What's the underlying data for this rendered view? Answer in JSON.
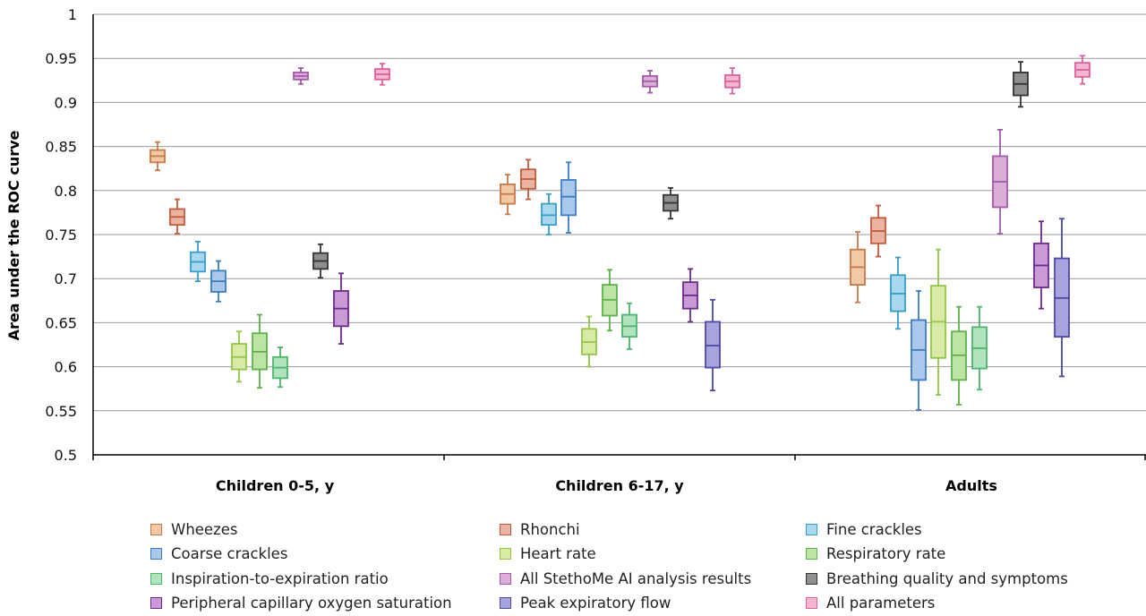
{
  "chart_data": {
    "type": "boxplot",
    "ylabel": "Area under the ROC curve",
    "xlabel": "",
    "ylim": [
      0.5,
      1
    ],
    "yticks": [
      "0.5",
      "0.55",
      "0.6",
      "0.65",
      "0.7",
      "0.75",
      "0.8",
      "0.85",
      "0.9",
      "0.95",
      "1"
    ],
    "grid": true,
    "legend_position": "bottom",
    "categories": [
      "Children 0-5, y",
      "Children 6-17, y",
      "Adults"
    ],
    "series": [
      {
        "name": "Wheezes",
        "fill": "#f2c9a5",
        "stroke": "#c8794a",
        "boxes": [
          {
            "category": "Children 0-5, y",
            "min": 0.823,
            "q1": 0.832,
            "median": 0.839,
            "q3": 0.846,
            "max": 0.855
          },
          {
            "category": "Children 6-17, y",
            "min": 0.773,
            "q1": 0.785,
            "median": 0.796,
            "q3": 0.807,
            "max": 0.818
          },
          {
            "category": "Adults",
            "min": 0.673,
            "q1": 0.693,
            "median": 0.713,
            "q3": 0.733,
            "max": 0.753
          }
        ]
      },
      {
        "name": "Rhonchi",
        "fill": "#eab3a2",
        "stroke": "#c45a3a",
        "boxes": [
          {
            "category": "Children 0-5, y",
            "min": 0.751,
            "q1": 0.761,
            "median": 0.77,
            "q3": 0.779,
            "max": 0.79
          },
          {
            "category": "Children 6-17, y",
            "min": 0.79,
            "q1": 0.802,
            "median": 0.813,
            "q3": 0.824,
            "max": 0.835
          },
          {
            "category": "Adults",
            "min": 0.725,
            "q1": 0.74,
            "median": 0.754,
            "q3": 0.769,
            "max": 0.783
          }
        ]
      },
      {
        "name": "Fine crackles",
        "fill": "#a8d8ed",
        "stroke": "#3a9cc8",
        "boxes": [
          {
            "category": "Children 0-5, y",
            "min": 0.697,
            "q1": 0.708,
            "median": 0.719,
            "q3": 0.73,
            "max": 0.742
          },
          {
            "category": "Children 6-17, y",
            "min": 0.75,
            "q1": 0.761,
            "median": 0.772,
            "q3": 0.785,
            "max": 0.796
          },
          {
            "category": "Adults",
            "min": 0.643,
            "q1": 0.663,
            "median": 0.683,
            "q3": 0.704,
            "max": 0.724
          }
        ]
      },
      {
        "name": "Coarse crackles",
        "fill": "#a9c8ec",
        "stroke": "#3d7cc4",
        "boxes": [
          {
            "category": "Children 0-5, y",
            "min": 0.674,
            "q1": 0.685,
            "median": 0.697,
            "q3": 0.709,
            "max": 0.72
          },
          {
            "category": "Children 6-17, y",
            "min": 0.752,
            "q1": 0.772,
            "median": 0.793,
            "q3": 0.812,
            "max": 0.832
          },
          {
            "category": "Adults",
            "min": 0.551,
            "q1": 0.585,
            "median": 0.619,
            "q3": 0.653,
            "max": 0.686
          }
        ]
      },
      {
        "name": "Heart rate",
        "fill": "#d7eba6",
        "stroke": "#94c548",
        "boxes": [
          {
            "category": "Children 0-5, y",
            "min": 0.583,
            "q1": 0.597,
            "median": 0.611,
            "q3": 0.626,
            "max": 0.64
          },
          {
            "category": "Children 6-17, y",
            "min": 0.6,
            "q1": 0.614,
            "median": 0.628,
            "q3": 0.643,
            "max": 0.657
          },
          {
            "category": "Adults",
            "min": 0.568,
            "q1": 0.61,
            "median": 0.651,
            "q3": 0.692,
            "max": 0.733
          }
        ]
      },
      {
        "name": "Respiratory rate",
        "fill": "#bde3a5",
        "stroke": "#5cb34a",
        "boxes": [
          {
            "category": "Children 0-5, y",
            "min": 0.576,
            "q1": 0.597,
            "median": 0.617,
            "q3": 0.638,
            "max": 0.659
          },
          {
            "category": "Children 6-17, y",
            "min": 0.641,
            "q1": 0.658,
            "median": 0.676,
            "q3": 0.693,
            "max": 0.71
          },
          {
            "category": "Adults",
            "min": 0.557,
            "q1": 0.585,
            "median": 0.613,
            "q3": 0.64,
            "max": 0.668
          }
        ]
      },
      {
        "name": "Inspiration-to-expiration ratio",
        "fill": "#b2e3bf",
        "stroke": "#4cb56c",
        "boxes": [
          {
            "category": "Children 0-5, y",
            "min": 0.577,
            "q1": 0.587,
            "median": 0.599,
            "q3": 0.611,
            "max": 0.622
          },
          {
            "category": "Children 6-17, y",
            "min": 0.62,
            "q1": 0.634,
            "median": 0.646,
            "q3": 0.659,
            "max": 0.672
          },
          {
            "category": "Adults",
            "min": 0.574,
            "q1": 0.598,
            "median": 0.621,
            "q3": 0.645,
            "max": 0.668
          }
        ]
      },
      {
        "name": "All StethoMe AI analysis results",
        "fill": "#dbaed8",
        "stroke": "#a35aa8",
        "boxes": [
          {
            "category": "Children 0-5, y",
            "min": 0.921,
            "q1": 0.926,
            "median": 0.93,
            "q3": 0.934,
            "max": 0.939
          },
          {
            "category": "Children 6-17, y",
            "min": 0.911,
            "q1": 0.918,
            "median": 0.924,
            "q3": 0.93,
            "max": 0.936
          },
          {
            "category": "Adults",
            "min": 0.751,
            "q1": 0.781,
            "median": 0.81,
            "q3": 0.839,
            "max": 0.869
          }
        ]
      },
      {
        "name": "Breathing quality and symptoms",
        "fill": "#8f8f8f",
        "stroke": "#333333",
        "boxes": [
          {
            "category": "Children 0-5, y",
            "min": 0.701,
            "q1": 0.711,
            "median": 0.72,
            "q3": 0.729,
            "max": 0.739
          },
          {
            "category": "Children 6-17, y",
            "min": 0.768,
            "q1": 0.777,
            "median": 0.786,
            "q3": 0.795,
            "max": 0.803
          },
          {
            "category": "Adults",
            "min": 0.895,
            "q1": 0.908,
            "median": 0.921,
            "q3": 0.934,
            "max": 0.946
          }
        ]
      },
      {
        "name": "Peripheral capillary oxygen saturation",
        "fill": "#c99ad6",
        "stroke": "#6c2a8a",
        "boxes": [
          {
            "category": "Children 0-5, y",
            "min": 0.626,
            "q1": 0.646,
            "median": 0.666,
            "q3": 0.686,
            "max": 0.706
          },
          {
            "category": "Children 6-17, y",
            "min": 0.651,
            "q1": 0.666,
            "median": 0.681,
            "q3": 0.696,
            "max": 0.711
          },
          {
            "category": "Adults",
            "min": 0.666,
            "q1": 0.69,
            "median": 0.715,
            "q3": 0.74,
            "max": 0.765
          }
        ]
      },
      {
        "name": "Peak expiratory flow",
        "fill": "#a7a4dd",
        "stroke": "#4d48a8",
        "boxes": [
          {
            "category": "Children 6-17, y",
            "min": 0.573,
            "q1": 0.599,
            "median": 0.624,
            "q3": 0.651,
            "max": 0.676
          },
          {
            "category": "Adults",
            "min": 0.589,
            "q1": 0.634,
            "median": 0.678,
            "q3": 0.723,
            "max": 0.768
          }
        ]
      },
      {
        "name": "All parameters",
        "fill": "#f5b5d3",
        "stroke": "#e0609e",
        "boxes": [
          {
            "category": "Children 0-5, y",
            "min": 0.92,
            "q1": 0.926,
            "median": 0.932,
            "q3": 0.938,
            "max": 0.944
          },
          {
            "category": "Children 6-17, y",
            "min": 0.91,
            "q1": 0.917,
            "median": 0.924,
            "q3": 0.931,
            "max": 0.939
          },
          {
            "category": "Adults",
            "min": 0.921,
            "q1": 0.929,
            "median": 0.937,
            "q3": 0.945,
            "max": 0.953
          }
        ]
      }
    ]
  }
}
